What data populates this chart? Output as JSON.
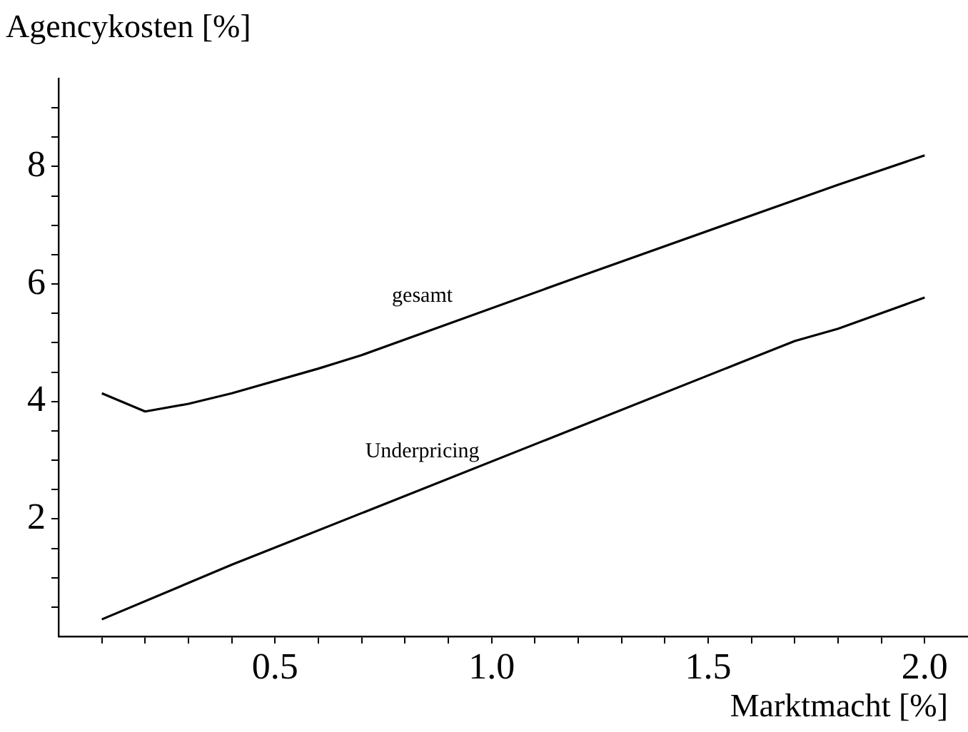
{
  "chart_data": {
    "type": "line",
    "xlabel": "Marktmacht [%]",
    "ylabel": "Agencykosten [%]",
    "marker": "none",
    "line_style": "solid",
    "xlim": [
      0,
      2.1
    ],
    "ylim": [
      0,
      9.5
    ],
    "xticks": [
      {
        "value": 0.1,
        "label": null
      },
      {
        "value": 0.2,
        "label": null
      },
      {
        "value": 0.3,
        "label": null
      },
      {
        "value": 0.4,
        "label": null
      },
      {
        "value": 0.5,
        "label": "0.5"
      },
      {
        "value": 0.6,
        "label": null
      },
      {
        "value": 0.7,
        "label": null
      },
      {
        "value": 0.8,
        "label": null
      },
      {
        "value": 0.9,
        "label": null
      },
      {
        "value": 1.0,
        "label": "1.0"
      },
      {
        "value": 1.1,
        "label": null
      },
      {
        "value": 1.2,
        "label": null
      },
      {
        "value": 1.3,
        "label": null
      },
      {
        "value": 1.4,
        "label": null
      },
      {
        "value": 1.5,
        "label": "1.5"
      },
      {
        "value": 1.6,
        "label": null
      },
      {
        "value": 1.7,
        "label": null
      },
      {
        "value": 1.8,
        "label": null
      },
      {
        "value": 1.9,
        "label": null
      },
      {
        "value": 2.0,
        "label": "2.0"
      }
    ],
    "yticks": [
      {
        "value": 0.5,
        "label": null
      },
      {
        "value": 1,
        "label": null
      },
      {
        "value": 1.5,
        "label": null
      },
      2,
      {
        "value": 2.5,
        "label": null
      },
      {
        "value": 3,
        "label": null
      },
      {
        "value": 3.5,
        "label": null
      },
      4,
      {
        "value": 4.5,
        "label": null
      },
      {
        "value": 5,
        "label": null
      },
      {
        "value": 5.5,
        "label": null
      },
      6,
      {
        "value": 6.5,
        "label": null
      },
      {
        "value": 7,
        "label": null
      },
      {
        "value": 7.5,
        "label": null
      },
      8,
      {
        "value": 8.5,
        "label": null
      },
      {
        "value": 9,
        "label": null
      }
    ],
    "series": [
      {
        "name": "gesamt",
        "color": "#000000",
        "x": [
          0.1,
          0.2,
          0.3,
          0.4,
          0.6,
          0.7,
          1.2,
          1.7,
          1.8,
          2.0
        ],
        "values": [
          4.14,
          3.83,
          3.96,
          4.14,
          4.56,
          4.79,
          6.12,
          7.43,
          7.69,
          8.19
        ]
      },
      {
        "name": "Underpricing",
        "color": "#000000",
        "x": [
          0.1,
          0.4,
          1.7,
          1.8,
          2.0
        ],
        "values": [
          0.29,
          1.22,
          5.03,
          5.24,
          5.77
        ]
      }
    ]
  }
}
